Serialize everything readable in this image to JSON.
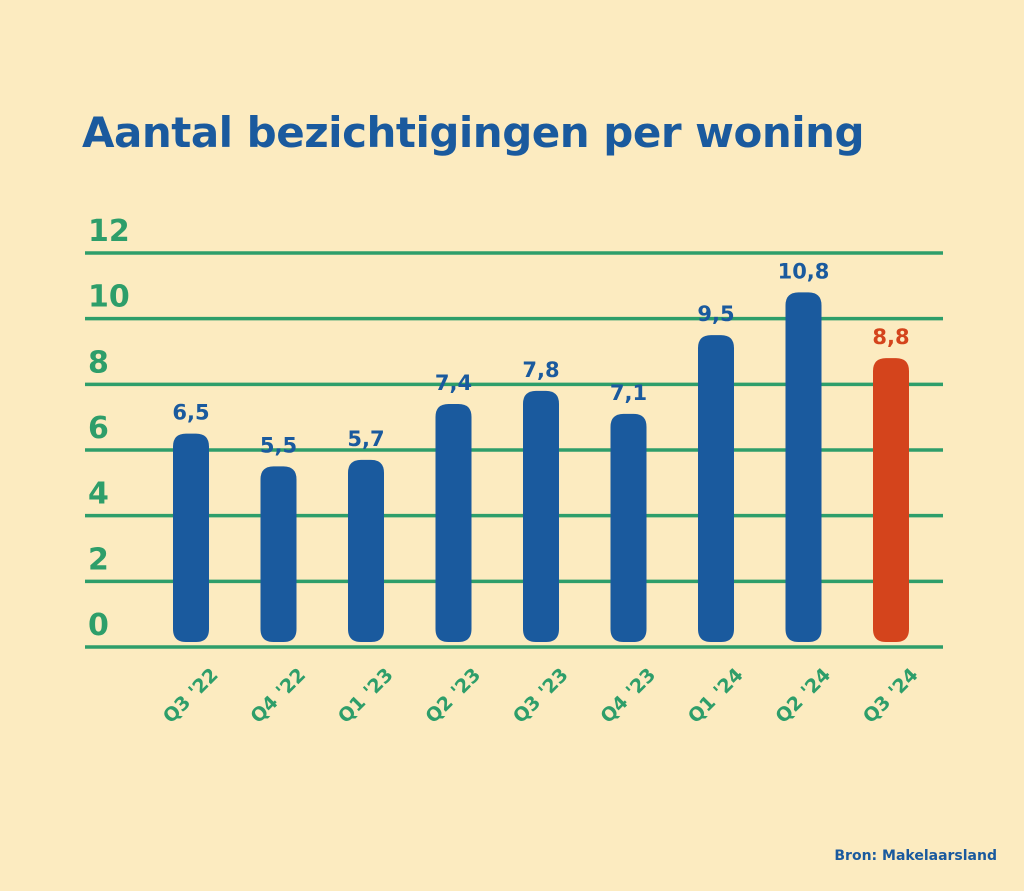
{
  "chart_data": {
    "type": "bar",
    "title": "Aantal bezichtigingen per woning",
    "categories": [
      "Q3 '22",
      "Q4 '22",
      "Q1 '23",
      "Q2 '23",
      "Q3 '23",
      "Q4 '23",
      "Q1 '24",
      "Q2 '24",
      "Q3 '24"
    ],
    "values": [
      6.5,
      5.5,
      5.7,
      7.4,
      7.8,
      7.1,
      9.5,
      10.8,
      8.8
    ],
    "value_labels": [
      "6,5",
      "5,5",
      "5,7",
      "7,4",
      "7,8",
      "7,1",
      "9,5",
      "10,8",
      "8,8"
    ],
    "highlight_index": 8,
    "ylim": [
      0,
      12
    ],
    "yticks": [
      0,
      2,
      4,
      6,
      8,
      10,
      12
    ],
    "xlabel": "",
    "ylabel": "",
    "grid": true,
    "legend": "none",
    "source": "Bron: Makelaarsland"
  },
  "colors": {
    "background": "#FCEBC0",
    "bar": "#1A5A9E",
    "highlight": "#D4441C",
    "grid": "#2E9E6A",
    "axis_text": "#2E9E6A",
    "title": "#1A5A9E"
  }
}
